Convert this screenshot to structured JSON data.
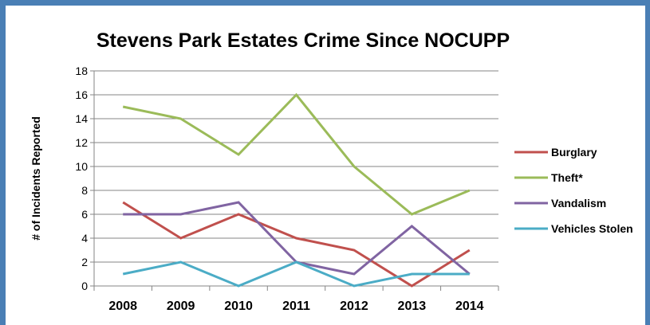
{
  "chart_data": {
    "type": "line",
    "title": "Stevens Park Estates Crime Since NOCUPP",
    "xlabel": "",
    "ylabel": "# of Incidents Reported",
    "categories": [
      "2008",
      "2009",
      "2010",
      "2011",
      "2012",
      "2013",
      "2014"
    ],
    "yticks": [
      "0",
      "2",
      "4",
      "6",
      "8",
      "10",
      "12",
      "14",
      "16",
      "18"
    ],
    "ylim": [
      0,
      18
    ],
    "grid": true,
    "legend_position": "right",
    "series": [
      {
        "name": "Burglary",
        "color": "#c0504d",
        "values": [
          7,
          4,
          6,
          4,
          3,
          0,
          3
        ]
      },
      {
        "name": "Theft*",
        "color": "#9bbb59",
        "values": [
          15,
          14,
          11,
          16,
          10,
          6,
          8
        ]
      },
      {
        "name": "Vandalism",
        "color": "#8064a2",
        "values": [
          6,
          6,
          7,
          2,
          1,
          5,
          1
        ]
      },
      {
        "name": "Vehicles Stolen",
        "color": "#4bacc6",
        "values": [
          1,
          2,
          0,
          2,
          0,
          1,
          1
        ]
      }
    ]
  }
}
